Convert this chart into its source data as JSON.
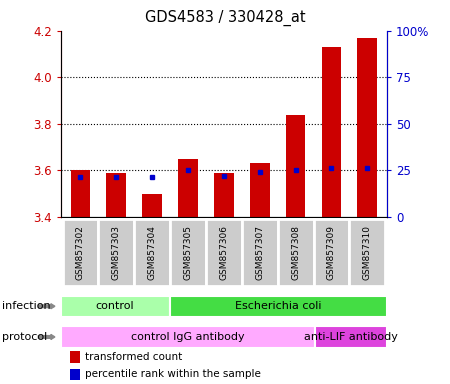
{
  "title": "GDS4583 / 330428_at",
  "samples": [
    "GSM857302",
    "GSM857303",
    "GSM857304",
    "GSM857305",
    "GSM857306",
    "GSM857307",
    "GSM857308",
    "GSM857309",
    "GSM857310"
  ],
  "red_values": [
    3.6,
    3.59,
    3.5,
    3.65,
    3.59,
    3.63,
    3.84,
    4.13,
    4.17
  ],
  "blue_values": [
    3.572,
    3.572,
    3.572,
    3.6,
    3.578,
    3.591,
    3.6,
    3.61,
    3.61
  ],
  "ylim_left": [
    3.4,
    4.2
  ],
  "ylim_right": [
    0,
    100
  ],
  "yticks_left": [
    3.4,
    3.6,
    3.8,
    4.0,
    4.2
  ],
  "yticks_right": [
    0,
    25,
    50,
    75,
    100
  ],
  "ytick_labels_right": [
    "0",
    "25",
    "50",
    "75",
    "100%"
  ],
  "baseline": 3.4,
  "red_color": "#cc0000",
  "blue_color": "#0000cc",
  "bar_width": 0.55,
  "infection_labels": [
    {
      "text": "control",
      "start": 0,
      "end": 2,
      "color": "#aaffaa"
    },
    {
      "text": "Escherichia coli",
      "start": 3,
      "end": 8,
      "color": "#44dd44"
    }
  ],
  "protocol_labels": [
    {
      "text": "control IgG antibody",
      "start": 0,
      "end": 6,
      "color": "#ffaaff"
    },
    {
      "text": "anti-LIF antibody",
      "start": 7,
      "end": 8,
      "color": "#dd44dd"
    }
  ],
  "infection_row_label": "infection",
  "protocol_row_label": "protocol",
  "legend_items": [
    {
      "color": "#cc0000",
      "label": "transformed count"
    },
    {
      "color": "#0000cc",
      "label": "percentile rank within the sample"
    }
  ],
  "tick_color_left": "#cc0000",
  "tick_color_right": "#0000cc",
  "grid_yticks": [
    3.6,
    3.8,
    4.0
  ],
  "sample_bg_color": "#cccccc",
  "sample_edge_color": "#ffffff"
}
